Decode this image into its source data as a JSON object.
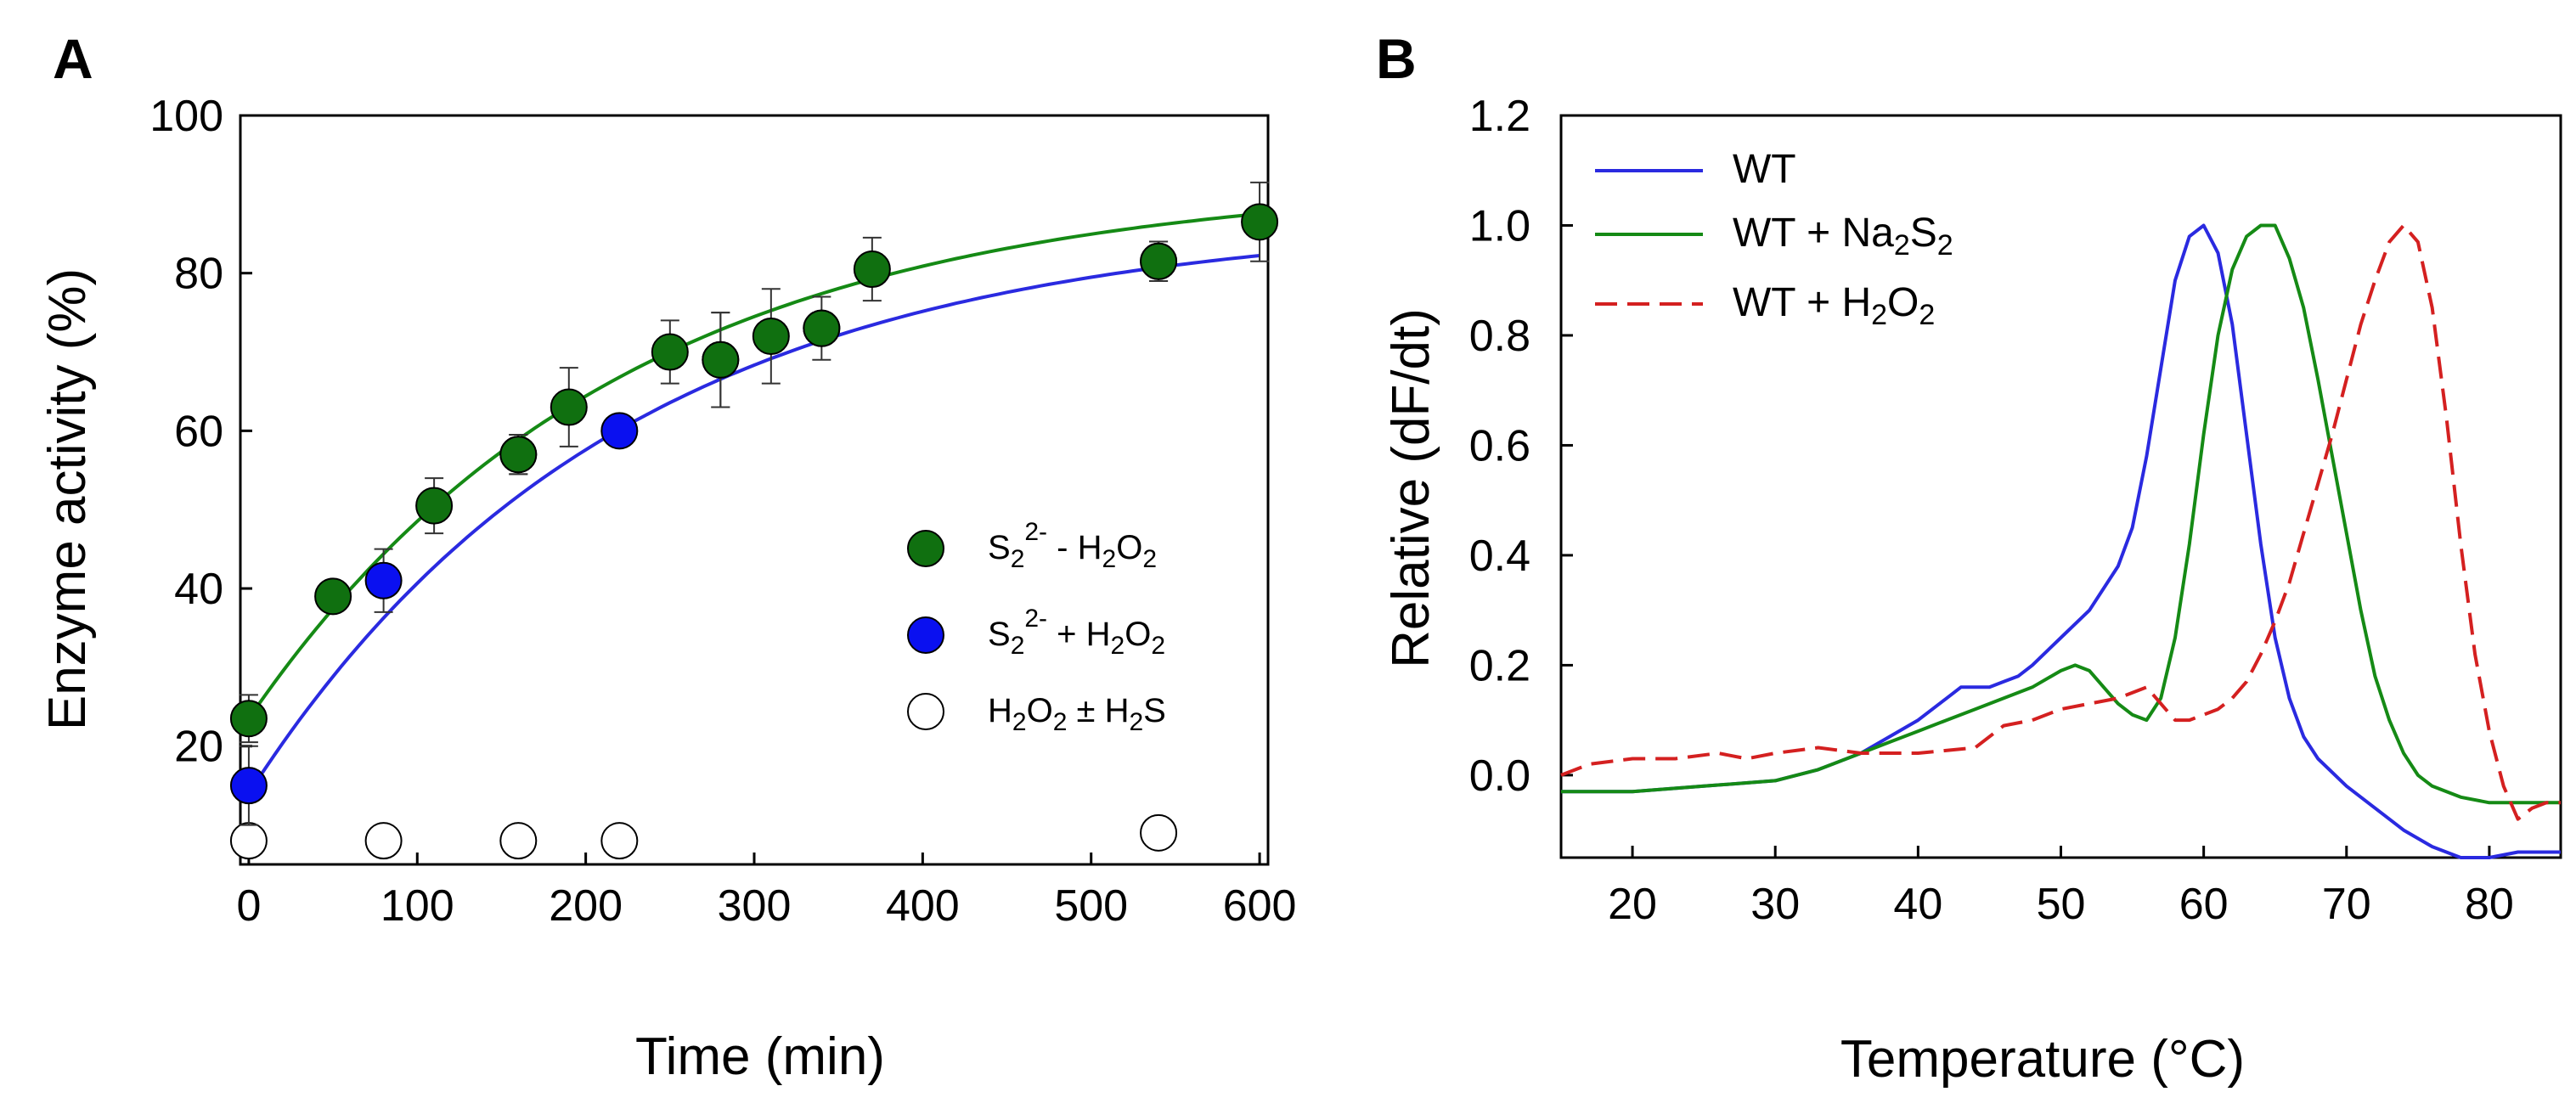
{
  "colors": {
    "green": "#107010",
    "blue": "#0a10f0",
    "red_dashed": "#d42020",
    "line_blue": "#2a2ae0",
    "line_green": "#158a15",
    "open_marker": "#ffffff"
  },
  "chart_data": [
    {
      "panel": "A",
      "type": "scatter",
      "xlabel": "Time (min)",
      "ylabel": "Enzyme activity (%)",
      "xlim": [
        -5,
        605
      ],
      "ylim": [
        5,
        100
      ],
      "xticks": [
        0,
        100,
        200,
        300,
        400,
        500,
        600
      ],
      "yticks": [
        20,
        40,
        60,
        80,
        100
      ],
      "legend_position": "right-middle",
      "series": [
        {
          "name": "S2 2- - H2O2",
          "label_parts": [
            "S",
            "2",
            "2-",
            " - H",
            "2",
            "O",
            "2"
          ],
          "marker": "filled",
          "color_key": "green",
          "points": [
            {
              "x": 0,
              "y": 23.5,
              "err": 3
            },
            {
              "x": 50,
              "y": 39,
              "err": 1
            },
            {
              "x": 110,
              "y": 50.5,
              "err": 3.5
            },
            {
              "x": 160,
              "y": 57,
              "err": 2.5
            },
            {
              "x": 190,
              "y": 63,
              "err": 5
            },
            {
              "x": 250,
              "y": 70,
              "err": 4
            },
            {
              "x": 280,
              "y": 69,
              "err": 6
            },
            {
              "x": 310,
              "y": 72,
              "err": 6
            },
            {
              "x": 340,
              "y": 73,
              "err": 2
            },
            {
              "x": 370,
              "y": 80.5,
              "err": 4
            },
            {
              "x": 540,
              "y": 81.5,
              "err": 2.5
            },
            {
              "x": 600,
              "y": 86.5,
              "err": 5
            }
          ],
          "fit": {
            "form": "y = A - B*exp(-x/tau)",
            "A": 92,
            "B": 68.5,
            "tau": 220
          }
        },
        {
          "name": "S2 2- + H2O2",
          "label_parts": [
            "S",
            "2",
            "2-",
            " + H",
            "2",
            "O",
            "2"
          ],
          "marker": "filled",
          "color_key": "blue",
          "points": [
            {
              "x": 0,
              "y": 15,
              "err": 5
            },
            {
              "x": 80,
              "y": 41,
              "err": 4
            },
            {
              "x": 160,
              "y": 57,
              "err": 2.5
            },
            {
              "x": 220,
              "y": 60,
              "err": 1
            },
            {
              "x": 280,
              "y": 69,
              "err": 6
            },
            {
              "x": 340,
              "y": 73,
              "err": 4
            },
            {
              "x": 540,
              "y": 81.5,
              "err": 2.5
            }
          ],
          "fit": {
            "form": "y = A - B*exp(-x/tau)",
            "A": 87,
            "B": 73,
            "tau": 220
          }
        },
        {
          "name": "H2O2 ± H2S",
          "label_parts": [
            "H",
            "2",
            "O",
            "2",
            " ± H",
            "2",
            "S"
          ],
          "marker": "open",
          "color_key": "open_marker",
          "points": [
            {
              "x": 0,
              "y": 8
            },
            {
              "x": 80,
              "y": 8
            },
            {
              "x": 160,
              "y": 8
            },
            {
              "x": 220,
              "y": 8
            },
            {
              "x": 540,
              "y": 9
            }
          ]
        }
      ]
    },
    {
      "panel": "B",
      "type": "line",
      "xlabel": "Temperature (°C)",
      "ylabel": "Relative (dF/dt)",
      "xlim": [
        15,
        85
      ],
      "ylim": [
        -0.15,
        1.2
      ],
      "xticks": [
        20,
        30,
        40,
        50,
        60,
        70,
        80
      ],
      "yticks": [
        0.0,
        0.2,
        0.4,
        0.6,
        0.8,
        1.0,
        1.2
      ],
      "ytick_labels": [
        "0.0",
        "0.2",
        "0.4",
        "0.6",
        "0.8",
        "1.0",
        "1.2"
      ],
      "legend_position": "top-left",
      "series": [
        {
          "name": "WT",
          "label_parts": [
            "WT"
          ],
          "color_key": "line_blue",
          "dash": false,
          "x": [
            15,
            20,
            25,
            30,
            33,
            36,
            38,
            40,
            42,
            43,
            44,
            45,
            46,
            47,
            48,
            50,
            52,
            54,
            55,
            56,
            57,
            58,
            59,
            60,
            61,
            62,
            63,
            64,
            65,
            66,
            67,
            68,
            70,
            72,
            74,
            76,
            78,
            80,
            82,
            85
          ],
          "y": [
            -0.03,
            -0.03,
            -0.02,
            -0.01,
            0.01,
            0.04,
            0.07,
            0.1,
            0.14,
            0.16,
            0.16,
            0.16,
            0.17,
            0.18,
            0.2,
            0.25,
            0.3,
            0.38,
            0.45,
            0.58,
            0.74,
            0.9,
            0.98,
            1.0,
            0.95,
            0.82,
            0.62,
            0.42,
            0.25,
            0.14,
            0.07,
            0.03,
            -0.02,
            -0.06,
            -0.1,
            -0.13,
            -0.15,
            -0.15,
            -0.14,
            -0.14
          ]
        },
        {
          "name": "WT + Na2S2",
          "label_parts": [
            "WT + Na",
            "2",
            "S",
            "2"
          ],
          "color_key": "line_green",
          "dash": false,
          "x": [
            15,
            20,
            25,
            30,
            33,
            36,
            38,
            40,
            42,
            44,
            46,
            48,
            50,
            51,
            52,
            53,
            54,
            55,
            56,
            57,
            58,
            59,
            60,
            61,
            62,
            63,
            64,
            65,
            66,
            67,
            68,
            69,
            70,
            71,
            72,
            73,
            74,
            75,
            76,
            78,
            80,
            82,
            85
          ],
          "y": [
            -0.03,
            -0.03,
            -0.02,
            -0.01,
            0.01,
            0.04,
            0.06,
            0.08,
            0.1,
            0.12,
            0.14,
            0.16,
            0.19,
            0.2,
            0.19,
            0.16,
            0.13,
            0.11,
            0.1,
            0.14,
            0.25,
            0.42,
            0.62,
            0.8,
            0.92,
            0.98,
            1.0,
            1.0,
            0.94,
            0.85,
            0.72,
            0.58,
            0.44,
            0.3,
            0.18,
            0.1,
            0.04,
            0.0,
            -0.02,
            -0.04,
            -0.05,
            -0.05,
            -0.05
          ]
        },
        {
          "name": "WT + H2O2",
          "label_parts": [
            "WT + H",
            "2",
            "O",
            "2"
          ],
          "color_key": "red_dashed",
          "dash": true,
          "x": [
            15,
            17,
            20,
            23,
            26,
            28,
            30,
            33,
            36,
            40,
            44,
            46,
            48,
            50,
            52,
            54,
            56,
            57,
            58,
            59,
            60,
            61,
            62,
            63,
            64,
            65,
            66,
            67,
            68,
            69,
            70,
            71,
            72,
            73,
            74,
            75,
            76,
            77,
            78,
            79,
            80,
            81,
            82,
            83,
            84,
            85
          ],
          "y": [
            0.0,
            0.02,
            0.03,
            0.03,
            0.04,
            0.03,
            0.04,
            0.05,
            0.04,
            0.04,
            0.05,
            0.09,
            0.1,
            0.12,
            0.13,
            0.14,
            0.16,
            0.13,
            0.1,
            0.1,
            0.11,
            0.12,
            0.14,
            0.17,
            0.22,
            0.28,
            0.35,
            0.44,
            0.53,
            0.62,
            0.72,
            0.82,
            0.9,
            0.97,
            1.0,
            0.97,
            0.85,
            0.65,
            0.42,
            0.22,
            0.08,
            -0.02,
            -0.08,
            -0.06,
            -0.05,
            -0.05
          ]
        }
      ]
    }
  ]
}
